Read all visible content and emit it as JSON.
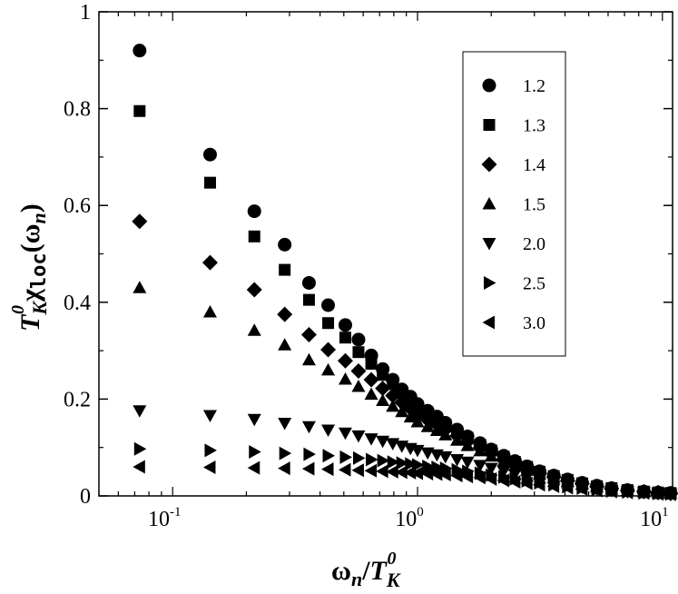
{
  "chart_data": {
    "type": "scatter",
    "x_scale": "log",
    "xlim": [
      0.05,
      11
    ],
    "ylim": [
      0,
      1
    ],
    "grid": false,
    "legend_placement": "top-right",
    "y_ticks": [
      "0",
      "0.2",
      "0.4",
      "0.6",
      "0.8",
      "1"
    ],
    "x_ticks": [
      {
        "base": "10",
        "exp": "-1",
        "value": 0.1
      },
      {
        "base": "10",
        "exp": "0",
        "value": 1
      },
      {
        "base": "10",
        "exp": "1",
        "value": 10
      }
    ],
    "xlabel": {
      "omega": "ω",
      "n": "n",
      "slash": "/",
      "T": "T",
      "K": "K",
      "zero": "0"
    },
    "ylabel": {
      "T": "T",
      "K": "K",
      "zero": "0",
      "chi": "χ",
      "loc": "loc",
      "lparen": "(",
      "omega": "ω",
      "n": "n",
      "rparen": ")"
    },
    "x": [
      0.0733,
      0.1422,
      0.2156,
      0.2868,
      0.3604,
      0.4315,
      0.5072,
      0.5739,
      0.6473,
      0.7207,
      0.7921,
      0.8628,
      0.9357,
      1.0,
      1.1,
      1.2,
      1.3,
      1.45,
      1.6,
      1.8,
      2.0,
      2.25,
      2.5,
      2.8,
      3.15,
      3.6,
      4.1,
      4.7,
      5.4,
      6.2,
      7.2,
      8.4,
      9.6,
      10.8
    ],
    "series": [
      {
        "name": "1.2",
        "marker": "circle",
        "values": [
          0.92,
          0.705,
          0.588,
          0.519,
          0.44,
          0.394,
          0.353,
          0.323,
          0.29,
          0.262,
          0.24,
          0.22,
          0.205,
          0.19,
          0.176,
          0.164,
          0.151,
          0.137,
          0.123,
          0.109,
          0.096,
          0.083,
          0.072,
          0.061,
          0.051,
          0.042,
          0.034,
          0.027,
          0.021,
          0.016,
          0.012,
          0.009,
          0.007,
          0.006
        ]
      },
      {
        "name": "1.3",
        "marker": "square",
        "values": [
          0.795,
          0.647,
          0.536,
          0.467,
          0.405,
          0.357,
          0.327,
          0.297,
          0.273,
          0.25,
          0.231,
          0.213,
          0.197,
          0.184,
          0.171,
          0.159,
          0.147,
          0.133,
          0.12,
          0.106,
          0.094,
          0.081,
          0.07,
          0.06,
          0.05,
          0.041,
          0.033,
          0.026,
          0.02,
          0.016,
          0.012,
          0.009,
          0.007,
          0.006
        ]
      },
      {
        "name": "1.4",
        "marker": "diamond",
        "values": [
          0.567,
          0.482,
          0.426,
          0.375,
          0.333,
          0.302,
          0.279,
          0.258,
          0.24,
          0.222,
          0.207,
          0.193,
          0.18,
          0.168,
          0.157,
          0.147,
          0.137,
          0.124,
          0.112,
          0.099,
          0.088,
          0.076,
          0.066,
          0.056,
          0.047,
          0.039,
          0.031,
          0.025,
          0.019,
          0.015,
          0.011,
          0.009,
          0.007,
          0.005
        ]
      },
      {
        "name": "1.5",
        "marker": "triangle-up",
        "values": [
          0.43,
          0.38,
          0.342,
          0.312,
          0.281,
          0.26,
          0.241,
          0.226,
          0.21,
          0.197,
          0.185,
          0.174,
          0.163,
          0.153,
          0.143,
          0.135,
          0.126,
          0.115,
          0.104,
          0.093,
          0.082,
          0.072,
          0.062,
          0.053,
          0.045,
          0.037,
          0.03,
          0.024,
          0.018,
          0.014,
          0.011,
          0.008,
          0.006,
          0.005
        ]
      },
      {
        "name": "2.0",
        "marker": "triangle-down",
        "values": [
          0.176,
          0.166,
          0.158,
          0.15,
          0.143,
          0.136,
          0.13,
          0.124,
          0.118,
          0.113,
          0.108,
          0.103,
          0.098,
          0.094,
          0.089,
          0.085,
          0.081,
          0.075,
          0.07,
          0.063,
          0.057,
          0.051,
          0.045,
          0.039,
          0.033,
          0.028,
          0.023,
          0.018,
          0.014,
          0.011,
          0.009,
          0.007,
          0.005,
          0.004
        ]
      },
      {
        "name": "2.5",
        "marker": "triangle-right",
        "values": [
          0.097,
          0.094,
          0.091,
          0.088,
          0.086,
          0.083,
          0.08,
          0.078,
          0.075,
          0.073,
          0.07,
          0.068,
          0.066,
          0.064,
          0.061,
          0.059,
          0.057,
          0.054,
          0.051,
          0.047,
          0.043,
          0.039,
          0.035,
          0.031,
          0.027,
          0.023,
          0.019,
          0.016,
          0.013,
          0.01,
          0.008,
          0.006,
          0.005,
          0.004
        ]
      },
      {
        "name": "3.0",
        "marker": "triangle-left",
        "values": [
          0.06,
          0.059,
          0.058,
          0.057,
          0.056,
          0.055,
          0.054,
          0.053,
          0.052,
          0.051,
          0.05,
          0.049,
          0.048,
          0.047,
          0.046,
          0.045,
          0.044,
          0.042,
          0.04,
          0.038,
          0.035,
          0.032,
          0.029,
          0.026,
          0.023,
          0.02,
          0.017,
          0.014,
          0.011,
          0.009,
          0.007,
          0.006,
          0.004,
          0.003
        ]
      }
    ]
  }
}
